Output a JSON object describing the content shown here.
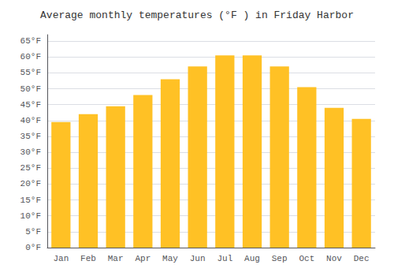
{
  "chart_data": {
    "type": "bar",
    "title": "Average monthly temperatures (°F ) in Friday Harbor",
    "categories": [
      "Jan",
      "Feb",
      "Mar",
      "Apr",
      "May",
      "Jun",
      "Jul",
      "Aug",
      "Sep",
      "Oct",
      "Nov",
      "Dec"
    ],
    "values": [
      39.5,
      42,
      44.5,
      48,
      53,
      57,
      60.5,
      60.5,
      57,
      50.5,
      44,
      40.5
    ],
    "color": "#FFC125",
    "ylim": [
      0,
      67
    ],
    "yticks": [
      {
        "value": 0,
        "label": "0°F"
      },
      {
        "value": 5,
        "label": "5°F"
      },
      {
        "value": 10,
        "label": "10°F"
      },
      {
        "value": 15,
        "label": "15°F"
      },
      {
        "value": 20,
        "label": "20°F"
      },
      {
        "value": 25,
        "label": "25°F"
      },
      {
        "value": 30,
        "label": "30°F"
      },
      {
        "value": 35,
        "label": "35°F"
      },
      {
        "value": 40,
        "label": "40°F"
      },
      {
        "value": 45,
        "label": "45°F"
      },
      {
        "value": 50,
        "label": "50°F"
      },
      {
        "value": 55,
        "label": "55°F"
      },
      {
        "value": 60,
        "label": "60°F"
      },
      {
        "value": 65,
        "label": "65°F"
      }
    ],
    "grid": true
  }
}
